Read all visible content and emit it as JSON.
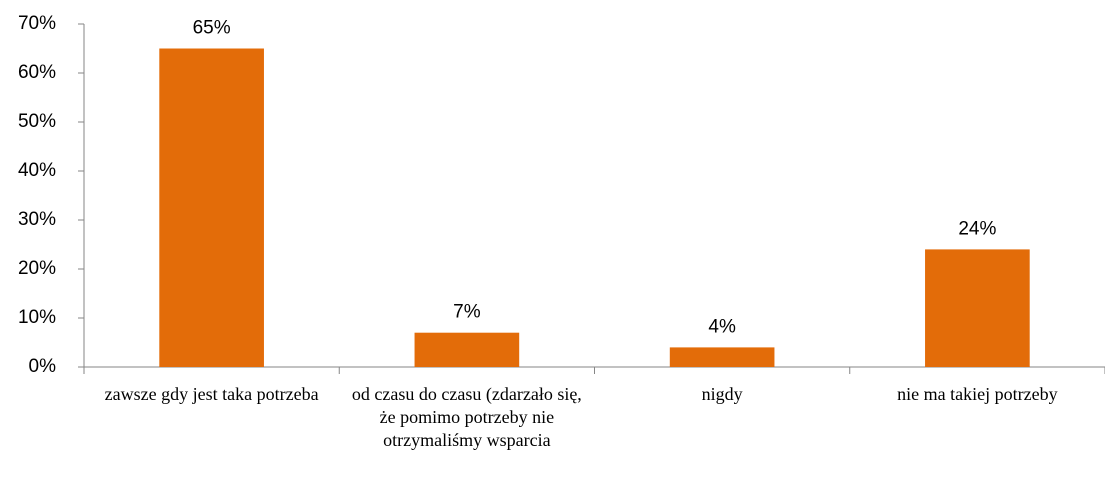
{
  "chart_data": {
    "type": "bar",
    "categories": [
      "zawsze gdy jest taka potrzeba",
      "od czasu do czasu (zdarzało się, że pomimo potrzeby nie otrzymaliśmy wsparcia",
      "nigdy",
      "nie ma takiej potrzeby"
    ],
    "values": [
      65,
      7,
      4,
      24
    ],
    "value_labels": [
      "65%",
      "7%",
      "4%",
      "24%"
    ],
    "color": "#e36c09",
    "ylim": [
      0,
      70
    ],
    "yticks": [
      {
        "value": 0,
        "label": "0%"
      },
      {
        "value": 10,
        "label": "10%"
      },
      {
        "value": 20,
        "label": "20%"
      },
      {
        "value": 30,
        "label": "30%"
      },
      {
        "value": 40,
        "label": "40%"
      },
      {
        "value": 50,
        "label": "50%"
      },
      {
        "value": 60,
        "label": "60%"
      },
      {
        "value": 70,
        "label": "70%"
      }
    ],
    "grid": false
  }
}
